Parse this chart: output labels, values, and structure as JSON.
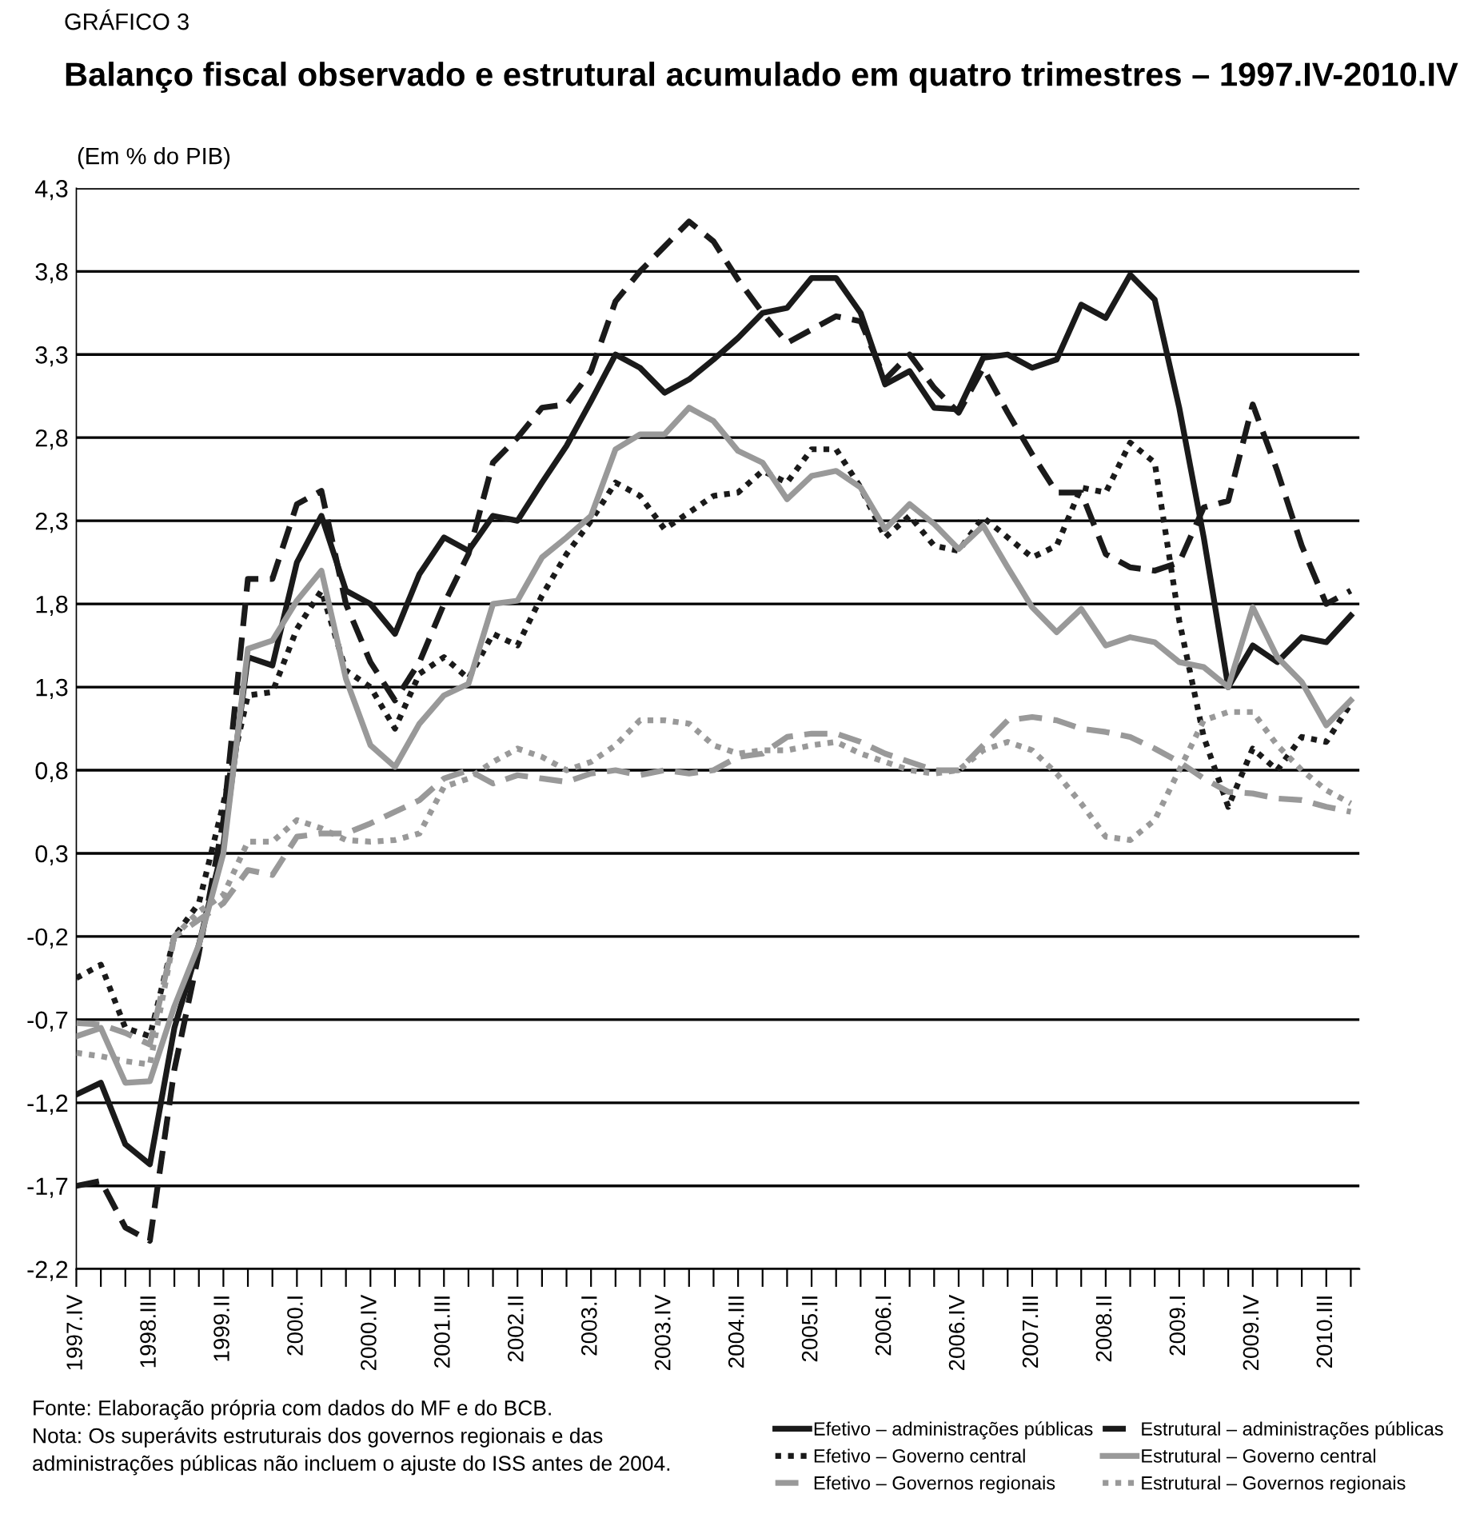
{
  "chart_data": {
    "type": "line",
    "title": "Balanço fiscal observado e estrutural acumulado em quatro trimestres – 1997.IV-2010.IV",
    "subtitle": "(Em % do PIB)",
    "annotations": [
      "GRÁFICO 3",
      "Fonte: Elaboração própria com dados do MF e do BCB.\nNota: Os superávits estruturais dos governos regionais e das\nadministrações públicas não incluem o ajuste do ISS antes de 2004."
    ],
    "categories": [
      "1997.IV",
      null,
      null,
      "1998.III",
      null,
      null,
      "1999.II",
      null,
      null,
      "2000.I",
      null,
      null,
      "2000.IV",
      null,
      null,
      "2001.III",
      null,
      null,
      "2002.II",
      null,
      null,
      "2003.I",
      null,
      null,
      "2003.IV",
      null,
      null,
      "2004.III",
      null,
      null,
      "2005.II",
      null,
      null,
      "2006.I",
      null,
      null,
      "2006.IV",
      null,
      null,
      "2007.III",
      null,
      null,
      "2008.II",
      null,
      null,
      "2009.I",
      null,
      null,
      "2009.IV",
      null,
      null,
      "2010.III",
      null
    ],
    "series": [
      {
        "name": "Efetivo – administrações públicas",
        "color": "#1a1a1a",
        "line_style": "solid",
        "values": [
          -1.15,
          -1.08,
          -1.45,
          -1.57,
          -0.75,
          -0.25,
          0.35,
          1.48,
          1.43,
          2.05,
          2.33,
          1.88,
          1.8,
          1.62,
          1.98,
          2.2,
          2.12,
          2.33,
          2.3,
          2.53,
          2.75,
          3.02,
          3.3,
          3.22,
          3.07,
          3.15,
          3.27,
          3.4,
          3.55,
          3.58,
          3.76,
          3.76,
          3.55,
          3.12,
          3.2,
          2.98,
          2.97,
          3.28,
          3.3,
          3.22,
          3.27,
          3.6,
          3.52,
          3.78,
          3.63,
          2.98,
          2.2,
          1.3,
          1.55,
          1.45,
          1.6,
          1.57,
          1.73
        ]
      },
      {
        "name": "Estrutural – administrações públicas",
        "color": "#1a1a1a",
        "line_style": "dashed",
        "values": [
          -1.7,
          -1.67,
          -1.95,
          -2.03,
          -1.0,
          -0.3,
          0.5,
          1.95,
          1.95,
          2.4,
          2.48,
          1.8,
          1.45,
          1.22,
          1.45,
          1.8,
          2.1,
          2.65,
          2.8,
          2.98,
          3.0,
          3.2,
          3.62,
          3.8,
          3.95,
          4.1,
          3.98,
          3.75,
          3.55,
          3.37,
          3.45,
          3.53,
          3.5,
          3.15,
          3.3,
          3.1,
          2.95,
          3.22,
          2.95,
          2.7,
          2.47,
          2.47,
          2.1,
          2.02,
          2.0,
          2.05,
          2.38,
          2.42,
          3.0,
          2.6,
          2.15,
          1.8,
          1.88
        ]
      },
      {
        "name": "Efetivo – Governo central",
        "color": "#1a1a1a",
        "line_style": "dotted",
        "values": [
          -0.45,
          -0.37,
          -0.75,
          -0.8,
          -0.2,
          0.0,
          0.6,
          1.25,
          1.27,
          1.65,
          1.88,
          1.4,
          1.3,
          1.05,
          1.38,
          1.48,
          1.35,
          1.62,
          1.55,
          1.85,
          2.1,
          2.3,
          2.53,
          2.45,
          2.25,
          2.35,
          2.45,
          2.47,
          2.6,
          2.53,
          2.73,
          2.73,
          2.5,
          2.2,
          2.33,
          2.15,
          2.12,
          2.32,
          2.2,
          2.08,
          2.15,
          2.5,
          2.47,
          2.77,
          2.65,
          1.7,
          1.0,
          0.58,
          0.93,
          0.8,
          1.0,
          0.97,
          1.2
        ]
      },
      {
        "name": "Estrutural – Governo central",
        "color": "#999999",
        "line_style": "solid",
        "values": [
          -0.8,
          -0.75,
          -1.08,
          -1.07,
          -0.62,
          -0.25,
          0.3,
          1.53,
          1.58,
          1.82,
          2.0,
          1.35,
          0.95,
          0.82,
          1.08,
          1.25,
          1.32,
          1.8,
          1.82,
          2.08,
          2.2,
          2.33,
          2.73,
          2.82,
          2.82,
          2.98,
          2.9,
          2.72,
          2.65,
          2.43,
          2.57,
          2.6,
          2.5,
          2.25,
          2.4,
          2.28,
          2.13,
          2.27,
          2.02,
          1.78,
          1.63,
          1.77,
          1.55,
          1.6,
          1.57,
          1.45,
          1.42,
          1.3,
          1.78,
          1.48,
          1.33,
          1.07,
          1.22
        ]
      },
      {
        "name": "Efetivo – Governos regionais",
        "color": "#999999",
        "line_style": "dashed",
        "values": [
          -0.72,
          -0.73,
          -0.78,
          -0.85,
          -0.2,
          -0.1,
          0.0,
          0.2,
          0.17,
          0.4,
          0.42,
          0.42,
          0.48,
          0.55,
          0.62,
          0.75,
          0.8,
          0.72,
          0.77,
          0.75,
          0.73,
          0.78,
          0.8,
          0.77,
          0.8,
          0.78,
          0.8,
          0.88,
          0.9,
          1.0,
          1.02,
          1.02,
          0.97,
          0.9,
          0.85,
          0.8,
          0.8,
          0.95,
          1.1,
          1.12,
          1.1,
          1.05,
          1.03,
          1.0,
          0.93,
          0.85,
          0.75,
          0.67,
          0.66,
          0.63,
          0.62,
          0.58,
          0.55
        ]
      },
      {
        "name": "Estrutural – Governos regionais",
        "color": "#999999",
        "line_style": "dotted",
        "values": [
          -0.9,
          -0.92,
          -0.95,
          -0.97,
          -0.2,
          -0.05,
          0.05,
          0.37,
          0.37,
          0.5,
          0.45,
          0.38,
          0.37,
          0.38,
          0.42,
          0.7,
          0.75,
          0.85,
          0.93,
          0.88,
          0.8,
          0.85,
          0.95,
          1.1,
          1.1,
          1.08,
          0.95,
          0.9,
          0.92,
          0.92,
          0.95,
          0.97,
          0.9,
          0.85,
          0.8,
          0.78,
          0.8,
          0.92,
          0.97,
          0.92,
          0.78,
          0.6,
          0.4,
          0.38,
          0.5,
          0.8,
          1.1,
          1.15,
          1.15,
          0.95,
          0.8,
          0.68,
          0.6
        ]
      }
    ],
    "ylim": [
      -2.2,
      4.3
    ],
    "yticks": [
      {
        "value": -2.2,
        "label": "-2,2"
      },
      {
        "value": -1.7,
        "label": "-1,7"
      },
      {
        "value": -1.2,
        "label": "-1,2"
      },
      {
        "value": -0.7,
        "label": "-0,7"
      },
      {
        "value": -0.2,
        "label": "-0,2"
      },
      {
        "value": 0.3,
        "label": "0,3"
      },
      {
        "value": 0.8,
        "label": "0,8"
      },
      {
        "value": 1.3,
        "label": "1,3"
      },
      {
        "value": 1.8,
        "label": "1,8"
      },
      {
        "value": 2.3,
        "label": "2,3"
      },
      {
        "value": 2.8,
        "label": "2,8"
      },
      {
        "value": 3.3,
        "label": "3,3"
      },
      {
        "value": 3.8,
        "label": "3,8"
      },
      {
        "value": 4.3,
        "label": "4,3"
      }
    ],
    "grid": "y",
    "legend": "bottom right",
    "marker": "none"
  }
}
